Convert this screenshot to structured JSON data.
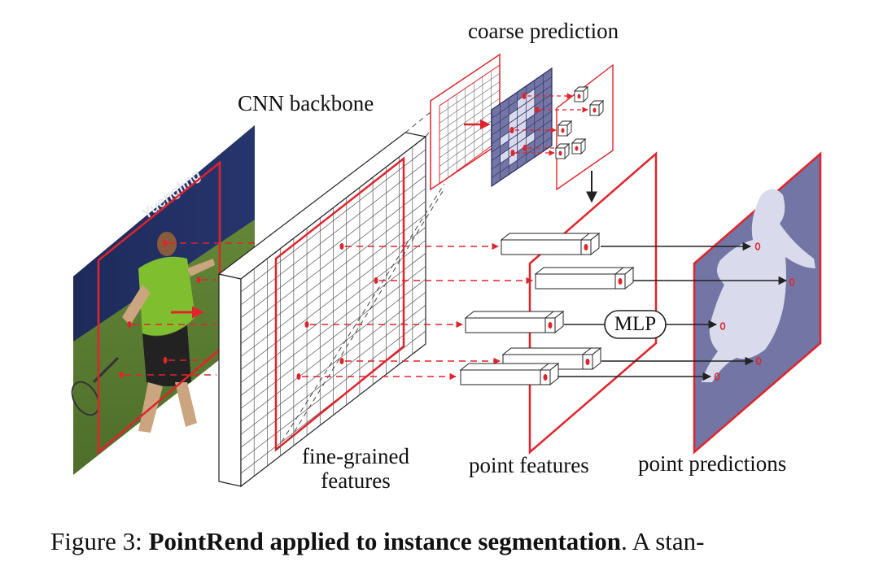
{
  "labels": {
    "coarse_prediction": "coarse prediction",
    "cnn_backbone": "CNN backbone",
    "fine_grained_line1": "fine-grained",
    "fine_grained_line2": "features",
    "point_features": "point features",
    "point_predictions": "point predictions",
    "mlp": "MLP"
  },
  "caption": {
    "prefix": "Figure 3: ",
    "bold": "PointRend applied to instance segmentation",
    "suffix": ". A stan-"
  },
  "colors": {
    "accent_red": "#e0242c",
    "mask_purple": "#7375a4",
    "mask_light": "#d9daeb",
    "grid_line": "#555555"
  }
}
